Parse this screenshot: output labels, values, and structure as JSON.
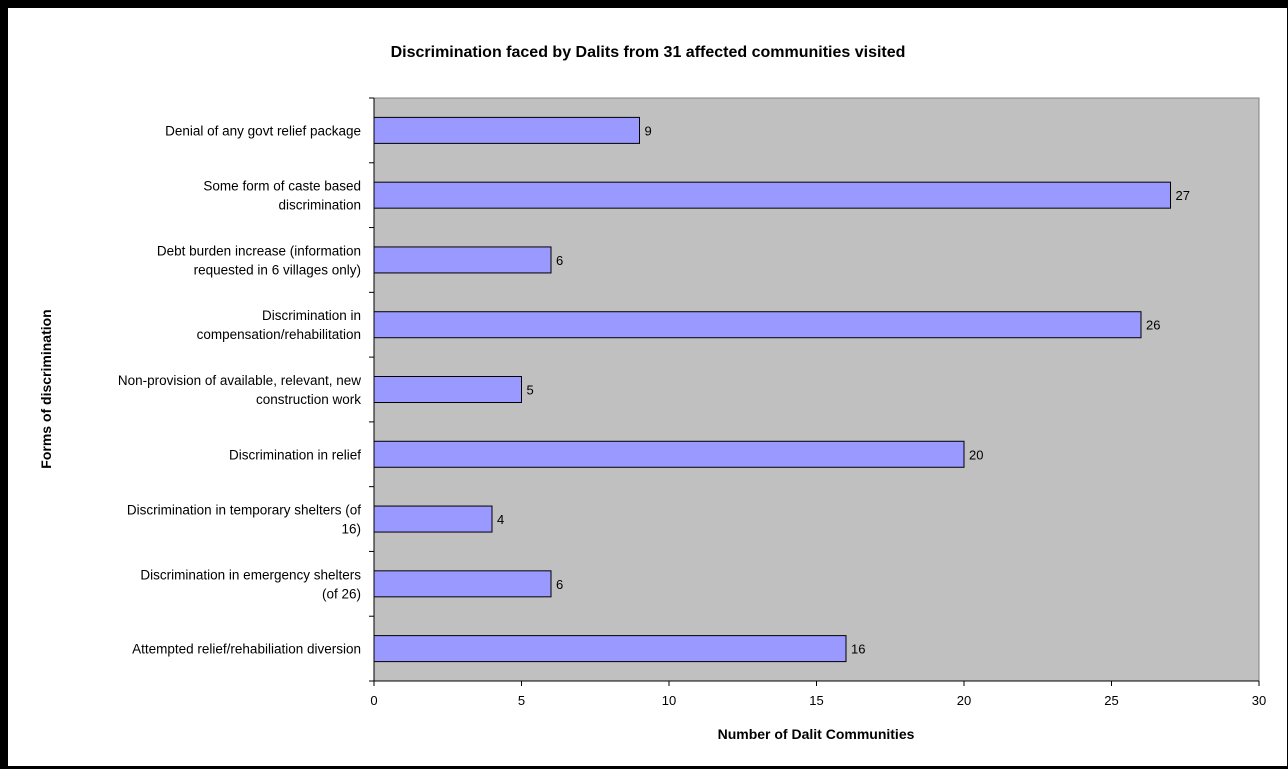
{
  "chart_data": {
    "type": "bar",
    "orientation": "horizontal",
    "title": "Discrimination faced by Dalits from 31 affected communities visited",
    "xlabel": "Number of Dalit Communities",
    "ylabel": "Forms of discrimination",
    "xlim": [
      0,
      30
    ],
    "x_ticks": [
      "0",
      "5",
      "10",
      "15",
      "20",
      "25",
      "30"
    ],
    "grid": false,
    "colors": {
      "bar_fill": "#9999ff",
      "bar_stroke": "#000000",
      "plot_bg": "#c0c0c0"
    },
    "categories": [
      [
        "Denial of any govt relief package"
      ],
      [
        "Some form of caste based",
        "discrimination"
      ],
      [
        "Debt burden increase (information",
        "requested in 6 villages only)"
      ],
      [
        "Discrimination in",
        "compensation/rehabilitation"
      ],
      [
        "Non-provision of available, relevant, new",
        "construction work"
      ],
      [
        "Discrimination in relief"
      ],
      [
        "Discrimination in temporary shelters (of",
        "16)"
      ],
      [
        "Discrimination in emergency shelters",
        "(of 26)"
      ],
      [
        "Attempted relief/rehabiliation diversion"
      ]
    ],
    "values": [
      9,
      27,
      6,
      26,
      5,
      20,
      4,
      6,
      16
    ]
  }
}
